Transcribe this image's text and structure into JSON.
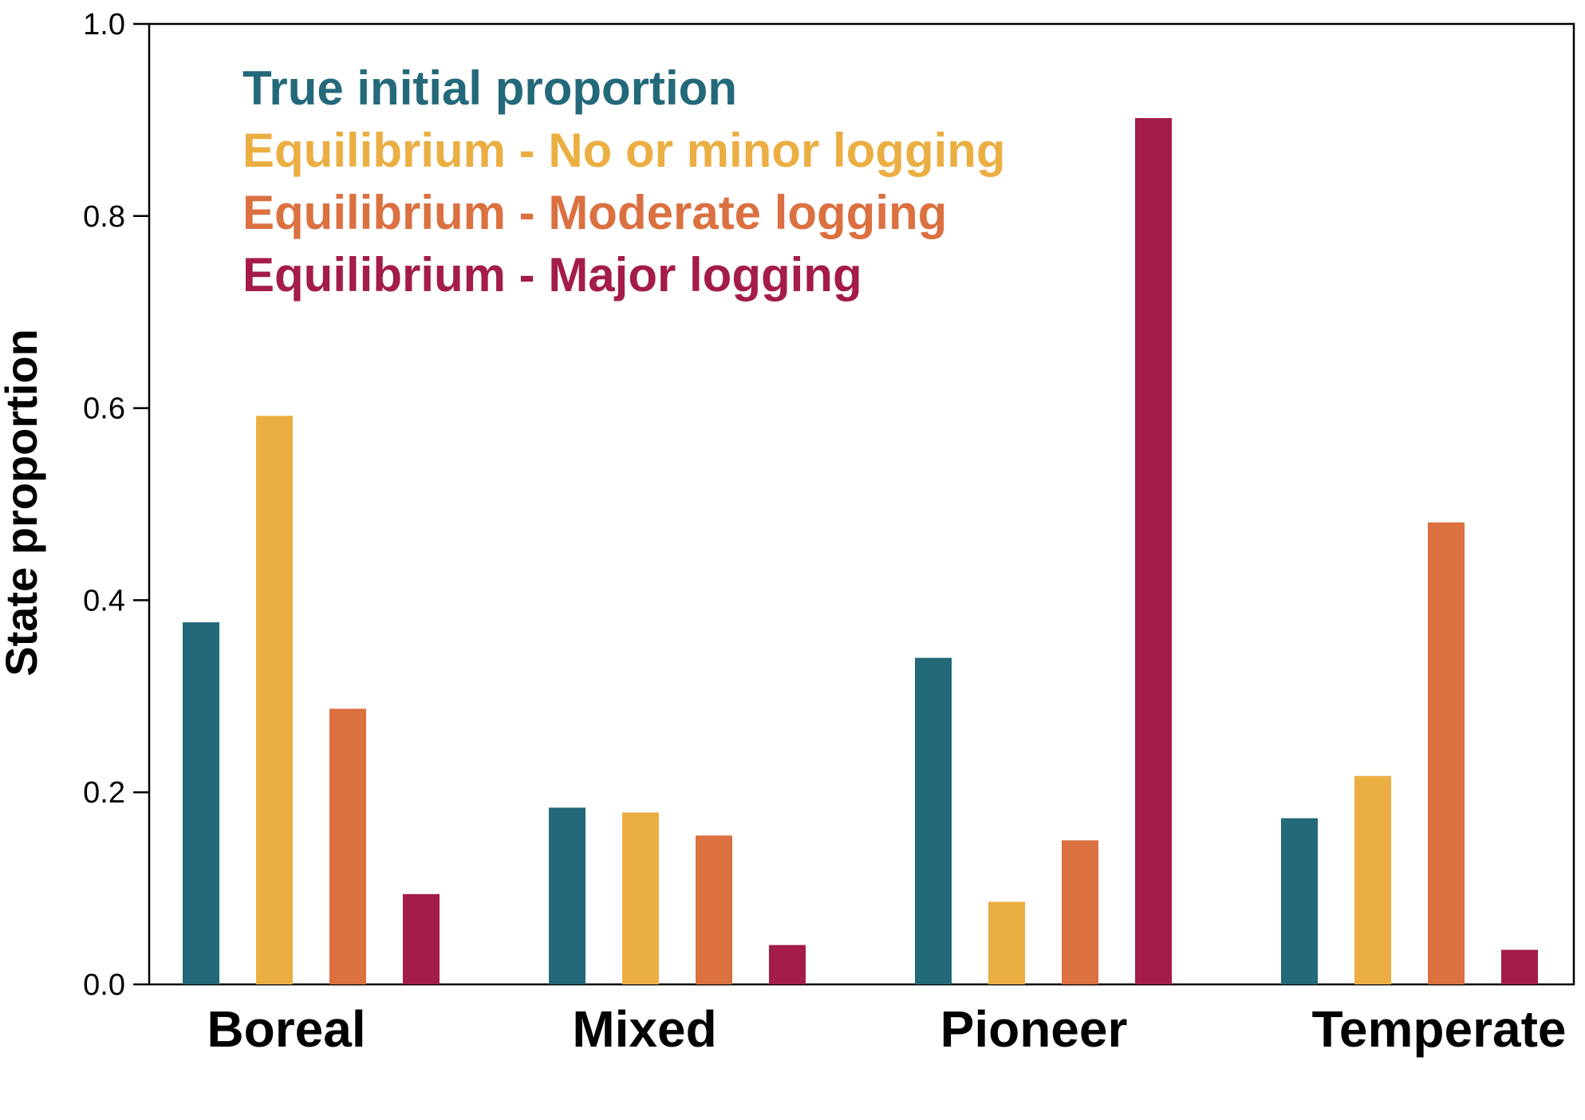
{
  "chart_data": {
    "type": "bar",
    "ylabel": "State proportion",
    "ylim": [
      0.0,
      1.0
    ],
    "yticks": [
      "0.0",
      "0.2",
      "0.4",
      "0.6",
      "0.8",
      "1.0"
    ],
    "categories": [
      "Boreal",
      "Mixed",
      "Pioneer",
      "Temperate"
    ],
    "legend_position": "top-left",
    "grid": false,
    "series": [
      {
        "name": "True initial proportion",
        "color": "#23697A",
        "values": [
          0.377,
          0.184,
          0.34,
          0.173
        ]
      },
      {
        "name": "Equilibrium - No or minor logging",
        "color": "#EBAE42",
        "values": [
          0.592,
          0.179,
          0.086,
          0.217
        ]
      },
      {
        "name": "Equilibrium - Moderate logging",
        "color": "#DB7040",
        "values": [
          0.287,
          0.155,
          0.15,
          0.481
        ]
      },
      {
        "name": "Equilibrium - Major logging",
        "color": "#A31C4A",
        "values": [
          0.094,
          0.041,
          0.902,
          0.036
        ]
      }
    ]
  }
}
